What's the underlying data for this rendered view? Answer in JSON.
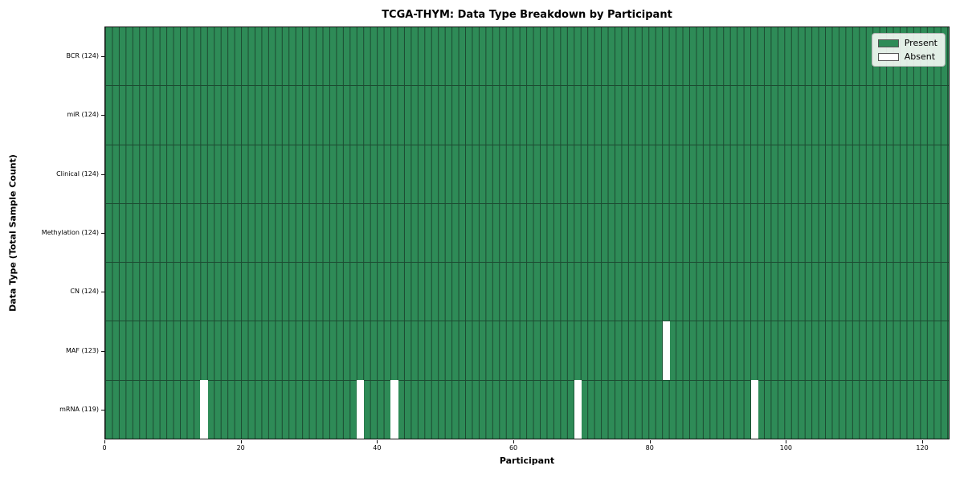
{
  "chart_data": {
    "type": "heatmap",
    "title": "TCGA-THYM: Data Type Breakdown by Participant",
    "xlabel": "Participant",
    "ylabel": "Data Type (Total Sample Count)",
    "x_range": [
      0,
      124
    ],
    "x_ticks": [
      0,
      20,
      40,
      60,
      80,
      100,
      120
    ],
    "n_participants": 124,
    "grid": true,
    "legend_position": "upper right",
    "rows": [
      {
        "label": "BCR (124)",
        "data_type": "BCR",
        "present_count": 124,
        "absent_participants": []
      },
      {
        "label": "miR (124)",
        "data_type": "miR",
        "present_count": 124,
        "absent_participants": []
      },
      {
        "label": "Clinical (124)",
        "data_type": "Clinical",
        "present_count": 124,
        "absent_participants": []
      },
      {
        "label": "Methylation (124)",
        "data_type": "Methylation",
        "present_count": 124,
        "absent_participants": []
      },
      {
        "label": "CN (124)",
        "data_type": "CN",
        "present_count": 124,
        "absent_participants": []
      },
      {
        "label": "MAF (123)",
        "data_type": "MAF",
        "present_count": 123,
        "absent_participants": [
          82
        ]
      },
      {
        "label": "mRNA (119)",
        "data_type": "mRNA",
        "present_count": 119,
        "absent_participants": [
          14,
          37,
          42,
          69,
          95
        ]
      }
    ],
    "legend": [
      {
        "label": "Present",
        "color": "#2e8b57"
      },
      {
        "label": "Absent",
        "color": "#ffffff"
      }
    ],
    "colors": {
      "present": "#2e8b57",
      "absent": "#ffffff",
      "cell_edge": "#1c4a31",
      "spine": "#111111"
    }
  }
}
